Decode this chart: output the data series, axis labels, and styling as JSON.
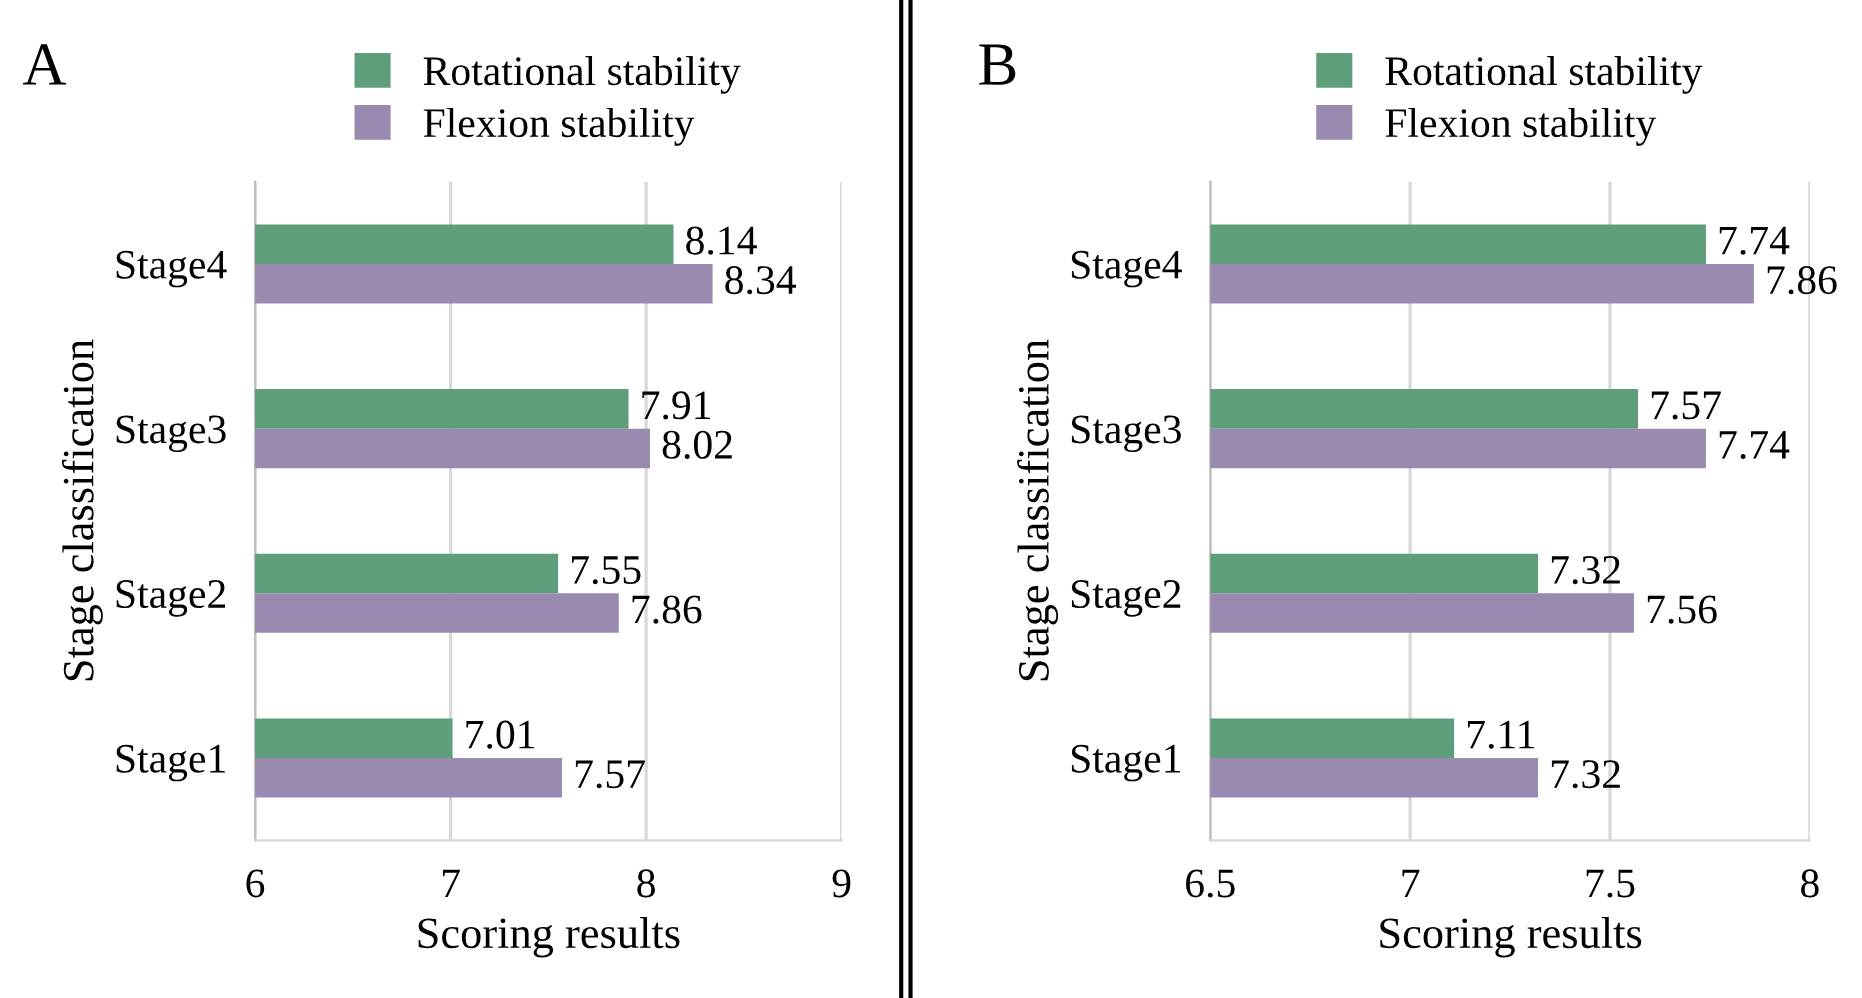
{
  "chart_data": [
    {
      "type": "bar",
      "orientation": "horizontal",
      "title": "A",
      "xlabel": "Scoring results",
      "ylabel": "Stage classification",
      "categories": [
        "Stage4",
        "Stage3",
        "Stage2",
        "Stage1"
      ],
      "series": [
        {
          "name": "Rotational stability",
          "color": "#5e9e7b",
          "values": [
            8.14,
            7.91,
            7.55,
            7.01
          ]
        },
        {
          "name": "Flexion stability",
          "color": "#9b8ab0",
          "values": [
            8.34,
            8.02,
            7.86,
            7.57
          ]
        }
      ],
      "xlim": [
        6,
        9
      ],
      "xticks": [
        6,
        7,
        8,
        9
      ],
      "grid": "x",
      "legend": "top",
      "data_labels": true
    },
    {
      "type": "bar",
      "orientation": "horizontal",
      "title": "B",
      "xlabel": "Scoring results",
      "ylabel": "Stage classification",
      "categories": [
        "Stage4",
        "Stage3",
        "Stage2",
        "Stage1"
      ],
      "series": [
        {
          "name": "Rotational stability",
          "color": "#5e9e7b",
          "values": [
            7.74,
            7.57,
            7.32,
            7.11
          ]
        },
        {
          "name": "Flexion stability",
          "color": "#9b8ab0",
          "values": [
            7.86,
            7.74,
            7.56,
            7.32
          ]
        }
      ],
      "xlim": [
        6.5,
        8
      ],
      "xticks": [
        6.5,
        7,
        7.5,
        8
      ],
      "grid": "x",
      "legend": "top",
      "data_labels": true
    }
  ]
}
